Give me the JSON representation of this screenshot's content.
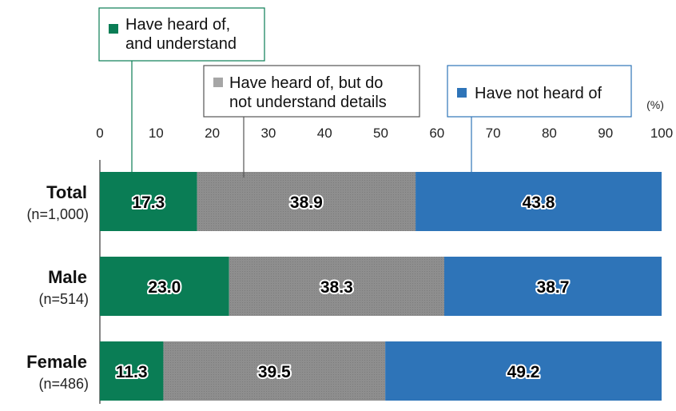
{
  "chart_data": {
    "type": "bar",
    "orientation": "horizontal",
    "stacked": true,
    "unit": "(%)",
    "xlim": [
      0,
      100
    ],
    "ticks": [
      0,
      10,
      20,
      30,
      40,
      50,
      60,
      70,
      80,
      90,
      100
    ],
    "categories": [
      {
        "name": "Total",
        "n": "(n=1,000)"
      },
      {
        "name": "Male",
        "n": "(n=514)"
      },
      {
        "name": "Female",
        "n": "(n=486)"
      }
    ],
    "series": [
      {
        "name": "Have heard of, and understand",
        "legend_lines": [
          "Have heard of,",
          "and understand"
        ],
        "color": "#0a7d55",
        "values": [
          17.3,
          23.0,
          11.3
        ]
      },
      {
        "name": "Have heard of, but do not understand details",
        "legend_lines": [
          "Have heard of, but do",
          "not understand details"
        ],
        "color": "#8c8c8c",
        "values": [
          38.9,
          38.3,
          39.5
        ]
      },
      {
        "name": "Have not heard of",
        "legend_lines": [
          "Have not heard of"
        ],
        "color": "#2e74b8",
        "values": [
          43.8,
          38.7,
          49.2
        ]
      }
    ],
    "value_labels": [
      [
        "17.3",
        "23.0",
        "11.3"
      ],
      [
        "38.9",
        "38.3",
        "39.5"
      ],
      [
        "43.8",
        "38.7",
        "49.2"
      ]
    ],
    "grid": false,
    "legend_placement": "top"
  }
}
